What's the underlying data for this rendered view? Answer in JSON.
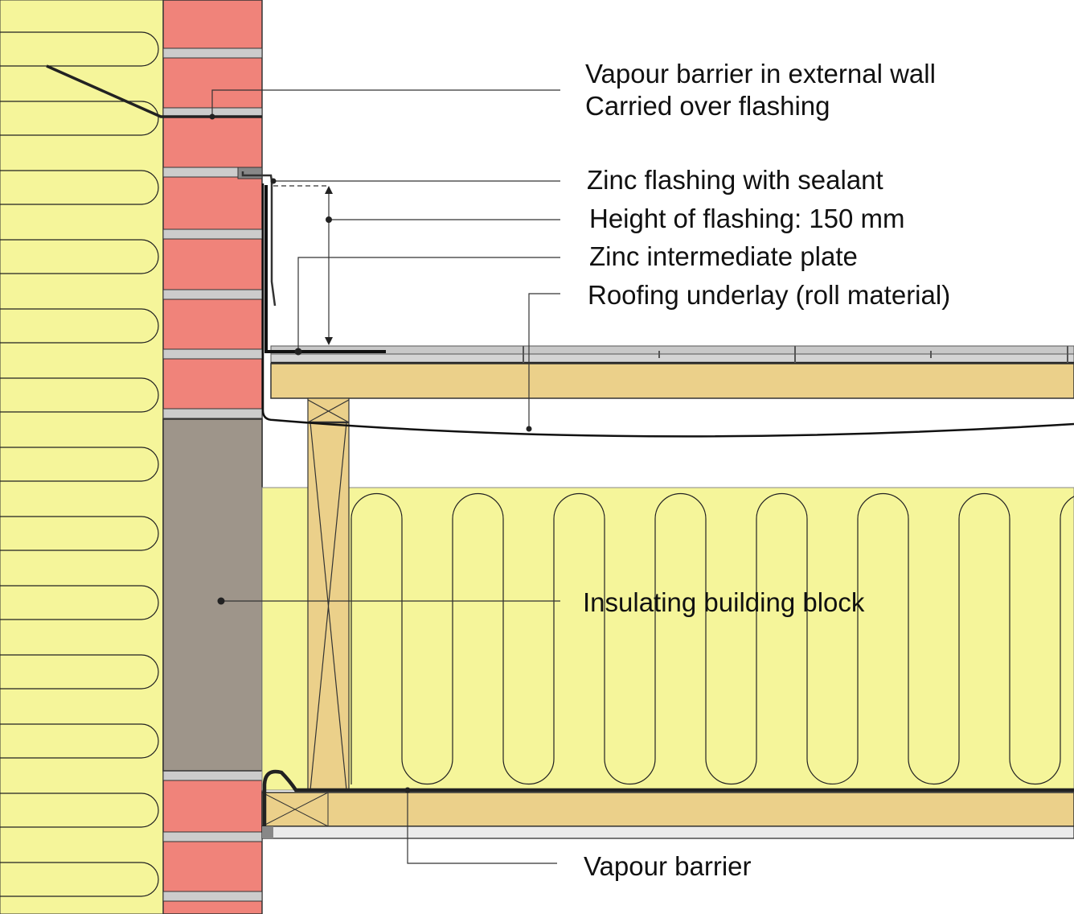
{
  "labels": {
    "vapour_barrier_wall_1": "Vapour barrier in external wall",
    "vapour_barrier_wall_2": "Carried over flashing",
    "zinc_flashing": "Zinc flashing with sealant",
    "flashing_height": "Height of flashing: 150 mm",
    "zinc_plate": "Zinc intermediate plate",
    "roofing_underlay": "Roofing underlay (roll material)",
    "insulating_block": "Insulating building block",
    "vapour_barrier": "Vapour barrier"
  },
  "colors": {
    "insulation": "#f5f59a",
    "brick": "#f0837a",
    "mortar": "#cccccc",
    "block": "#9e958a",
    "timber": "#ebd08a",
    "roof_layer": "#c8c8c8"
  }
}
